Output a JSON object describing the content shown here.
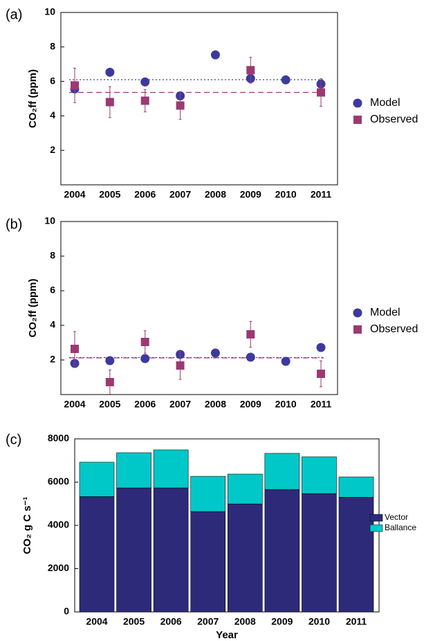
{
  "chart_data": [
    {
      "type": "dot",
      "panel_label": "(a)",
      "ylabel": "CO₂ff (ppm)",
      "categories": [
        "2004",
        "2005",
        "2006",
        "2007",
        "2008",
        "2009",
        "2010",
        "2011"
      ],
      "ylim": [
        0,
        10
      ],
      "yticks": [
        2,
        4,
        6,
        8,
        10
      ],
      "series": [
        {
          "name": "Model",
          "color": "#3d3a9e",
          "marker": "circle",
          "line_style": "dotted",
          "mean_line": 6.1,
          "values": [
            5.56,
            6.53,
            5.97,
            5.16,
            7.54,
            6.17,
            6.09,
            5.85
          ]
        },
        {
          "name": "Observed",
          "color": "#9b3a72",
          "marker": "square",
          "line_style": "dashed",
          "mean_line": 5.36,
          "values": [
            5.77,
            4.8,
            4.88,
            4.6,
            null,
            6.65,
            null,
            5.36
          ],
          "errors": [
            1.0,
            0.9,
            0.65,
            0.8,
            null,
            0.75,
            null,
            0.8
          ]
        }
      ]
    },
    {
      "type": "dot",
      "panel_label": "(b)",
      "ylabel": "CO₂ff (ppm)",
      "categories": [
        "2004",
        "2005",
        "2006",
        "2007",
        "2008",
        "2009",
        "2010",
        "2011"
      ],
      "ylim": [
        0,
        10
      ],
      "yticks": [
        2,
        4,
        6,
        8,
        10
      ],
      "series": [
        {
          "name": "Model",
          "color": "#3d3a9e",
          "marker": "circle",
          "line_style": "dotted",
          "mean_line": 2.14,
          "values": [
            1.8,
            1.96,
            2.08,
            2.32,
            2.4,
            2.16,
            1.92,
            2.72
          ]
        },
        {
          "name": "Observed",
          "color": "#9b3a72",
          "marker": "square",
          "line_style": "dashed",
          "mean_line": 2.12,
          "values": [
            2.64,
            0.72,
            3.04,
            1.68,
            null,
            3.48,
            null,
            1.2
          ],
          "errors": [
            1.0,
            0.7,
            0.65,
            0.8,
            null,
            0.75,
            null,
            0.75
          ]
        }
      ]
    },
    {
      "type": "stacked_bar",
      "panel_label": "(c)",
      "ylabel": "CO₂ g C s⁻¹",
      "xlabel": "Year",
      "categories": [
        "2004",
        "2005",
        "2006",
        "2007",
        "2008",
        "2009",
        "2010",
        "2011"
      ],
      "ylim": [
        0,
        8000
      ],
      "yticks": [
        0,
        2000,
        4000,
        6000,
        8000
      ],
      "series": [
        {
          "name": "Vector",
          "color": "#2e2a7a",
          "values": [
            5330,
            5730,
            5730,
            4640,
            4990,
            5660,
            5470,
            5300
          ]
        },
        {
          "name": "Ballance",
          "color": "#00c8c8",
          "values": [
            1590,
            1630,
            1760,
            1630,
            1380,
            1670,
            1700,
            940
          ]
        }
      ]
    }
  ]
}
